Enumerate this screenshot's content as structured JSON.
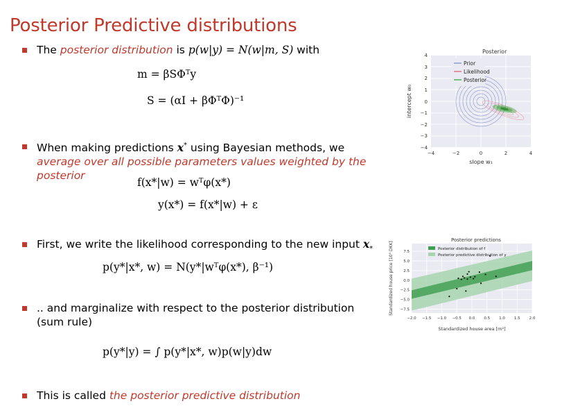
{
  "title": "Posterior Predictive distributions",
  "bullet1": {
    "pre": "The ",
    "em": "posterior distribution",
    "post_text": " is ",
    "math": "p(w|y) = N(w|m, S)",
    "tail": " with"
  },
  "eq_m": "m = βSΦᵀy",
  "eq_s": "S = (αI + βΦᵀΦ)⁻¹",
  "bullet2": {
    "pre": "When making predictions ",
    "mid": " using Bayesian methods, we ",
    "em": "average over all possible parameters values weighted by the posterior"
  },
  "eq_f": "f(x*|w) = wᵀφ(x*)",
  "eq_y": "y(x*) = f(x*|w) + ε",
  "bullet3": "First, we write the likelihood corresponding to the new input",
  "eq_lik": "p(y*|x*, w) = N(y*|wᵀφ(x*), β⁻¹)",
  "bullet4": ".. and marginalize with respect to the posterior distribution (sum rule)",
  "eq_marg": "p(y*|y) = ∫ p(y*|x*, w)p(w|y)dw",
  "bullet5": {
    "pre": "This is called ",
    "em": "the posterior predictive distribution"
  },
  "fig1": {
    "title": "Posterior",
    "xlabel": "slope w₁",
    "ylabel": "intercept w₀",
    "xticks": [
      "−4",
      "−2",
      "0",
      "2",
      "4"
    ],
    "yticks": [
      "4",
      "3",
      "2",
      "1",
      "0",
      "−1",
      "−2",
      "−3",
      "−4"
    ],
    "legend": [
      "Prior",
      "Likelihood",
      "Posterior"
    ],
    "colors": {
      "prior": "#7b88c8",
      "likelihood": "#e05a6a",
      "posterior": "#2ca02c"
    }
  },
  "fig2": {
    "title": "Posterior predictions",
    "xlabel": "Standardized house area [m²]",
    "ylabel": "Standardized house price [10⁵ DKK]",
    "xticks": [
      "−2.0",
      "−1.5",
      "−1.0",
      "−0.5",
      "0.0",
      "0.5",
      "1.0",
      "1.5",
      "2.0"
    ],
    "yticks": [
      "7.5",
      "5.0",
      "2.5",
      "0.0",
      "−2.5",
      "−5.0",
      "−7.5"
    ],
    "legend": [
      "Posterior distribution of f",
      "Posterior predictive distribution of y"
    ],
    "colors": {
      "inner": "#3d9e4f",
      "outer": "#a8d5b0"
    }
  },
  "chart_data": [
    {
      "type": "scatter",
      "title": "Posterior predictions",
      "xlabel": "Standardized house area [m²]",
      "ylabel": "Standardized house price [10⁵ DKK]",
      "xlim": [
        -2.0,
        2.0
      ],
      "ylim": [
        -8.5,
        9.5
      ],
      "series": [
        {
          "name": "Posterior distribution of f",
          "x": [
            -2.0,
            2.0
          ],
          "lower": [
            -4.8,
            2.6
          ],
          "upper": [
            -2.6,
            5.0
          ]
        },
        {
          "name": "Posterior predictive distribution of y",
          "x": [
            -2.0,
            2.0
          ],
          "lower": [
            -7.9,
            -0.2
          ],
          "upper": [
            0.4,
            7.7
          ]
        }
      ],
      "points": {
        "x": [
          -0.75,
          -0.5,
          -0.45,
          -0.35,
          -0.3,
          -0.25,
          -0.2,
          -0.15,
          -0.15,
          -0.1,
          -0.05,
          0.05,
          0.1,
          0.25,
          0.3,
          0.45,
          0.6,
          0.8
        ],
        "y": [
          -4.2,
          -2.2,
          0.5,
          0.2,
          1.0,
          0.6,
          -2.8,
          0.3,
          1.6,
          2.2,
          0.8,
          0.4,
          0.9,
          2.1,
          -0.8,
          1.5,
          6.3,
          1.0
        ]
      }
    }
  ]
}
